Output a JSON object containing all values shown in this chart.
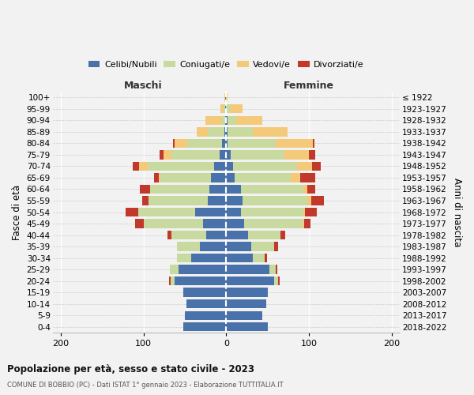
{
  "age_groups": [
    "0-4",
    "5-9",
    "10-14",
    "15-19",
    "20-24",
    "25-29",
    "30-34",
    "35-39",
    "40-44",
    "45-49",
    "50-54",
    "55-59",
    "60-64",
    "65-69",
    "70-74",
    "75-79",
    "80-84",
    "85-89",
    "90-94",
    "95-99",
    "100+"
  ],
  "birth_years": [
    "2018-2022",
    "2013-2017",
    "2008-2012",
    "2003-2007",
    "1998-2002",
    "1993-1997",
    "1988-1992",
    "1983-1987",
    "1978-1982",
    "1973-1977",
    "1968-1972",
    "1963-1967",
    "1958-1962",
    "1953-1957",
    "1948-1952",
    "1943-1947",
    "1938-1942",
    "1933-1937",
    "1928-1932",
    "1923-1927",
    "≤ 1922"
  ],
  "colors": {
    "celibi": "#4a72aa",
    "coniugati": "#c8daa0",
    "vedovi": "#f5c97a",
    "divorziati": "#c0392b"
  },
  "males": {
    "celibi": [
      52,
      50,
      48,
      52,
      62,
      58,
      42,
      32,
      24,
      28,
      38,
      22,
      20,
      18,
      15,
      8,
      5,
      2,
      1,
      1,
      1
    ],
    "coniugati": [
      0,
      0,
      0,
      0,
      5,
      10,
      18,
      28,
      42,
      72,
      68,
      72,
      72,
      62,
      80,
      58,
      42,
      20,
      4,
      2,
      0
    ],
    "vedovi": [
      0,
      0,
      0,
      0,
      0,
      0,
      0,
      0,
      0,
      0,
      0,
      0,
      0,
      2,
      10,
      10,
      15,
      14,
      20,
      4,
      1
    ],
    "divorziati": [
      0,
      0,
      0,
      0,
      2,
      0,
      0,
      0,
      5,
      10,
      16,
      8,
      12,
      5,
      8,
      5,
      2,
      0,
      0,
      0,
      0
    ]
  },
  "females": {
    "celibi": [
      50,
      44,
      48,
      50,
      58,
      52,
      32,
      30,
      26,
      22,
      18,
      20,
      18,
      10,
      8,
      5,
      2,
      2,
      2,
      0,
      0
    ],
    "coniugati": [
      0,
      0,
      0,
      0,
      5,
      8,
      15,
      28,
      40,
      70,
      75,
      78,
      75,
      68,
      78,
      65,
      58,
      30,
      10,
      5,
      0
    ],
    "vedovi": [
      0,
      0,
      0,
      0,
      0,
      0,
      0,
      0,
      0,
      2,
      2,
      5,
      5,
      12,
      18,
      30,
      45,
      42,
      32,
      15,
      2
    ],
    "divorziati": [
      0,
      0,
      0,
      0,
      2,
      2,
      2,
      5,
      5,
      8,
      15,
      15,
      10,
      18,
      10,
      8,
      2,
      0,
      0,
      0,
      0
    ]
  },
  "title": "Popolazione per età, sesso e stato civile - 2023",
  "subtitle": "COMUNE DI BOBBIO (PC) - Dati ISTAT 1° gennaio 2023 - Elaborazione TUTTITALIA.IT",
  "xlabel_left": "Maschi",
  "xlabel_right": "Femmine",
  "ylabel_left": "Fasce di età",
  "ylabel_right": "Anni di nascita",
  "xlim": [
    -210,
    210
  ],
  "xticks": [
    -200,
    -100,
    0,
    100,
    200
  ],
  "xticklabels": [
    "200",
    "100",
    "0",
    "100",
    "200"
  ],
  "legend_labels": [
    "Celibi/Nubili",
    "Coniugati/e",
    "Vedovi/e",
    "Divorziati/e"
  ],
  "background_color": "#f2f2f2"
}
